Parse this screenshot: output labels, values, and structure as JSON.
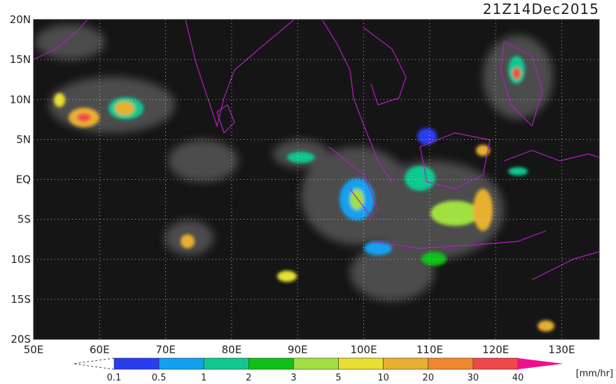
{
  "header": {
    "title": "21Z14Dec2015"
  },
  "map": {
    "lat_labels": [
      "20N",
      "15N",
      "10N",
      "5N",
      "EQ",
      "5S",
      "10S",
      "15S",
      "20S"
    ],
    "lon_labels": [
      "50E",
      "60E",
      "70E",
      "80E",
      "90E",
      "100E",
      "110E",
      "120E",
      "130E"
    ]
  },
  "colorbar": {
    "levels": [
      "0.1",
      "0.5",
      "1",
      "2",
      "3",
      "5",
      "10",
      "20",
      "30",
      "40"
    ],
    "colors": [
      "#2a3cf0",
      "#12a0f0",
      "#10c890",
      "#10c018",
      "#a0e040",
      "#e8e030",
      "#e8b030",
      "#f08830",
      "#f04848",
      "#f0108c"
    ],
    "unit": "[mm/hr]"
  }
}
